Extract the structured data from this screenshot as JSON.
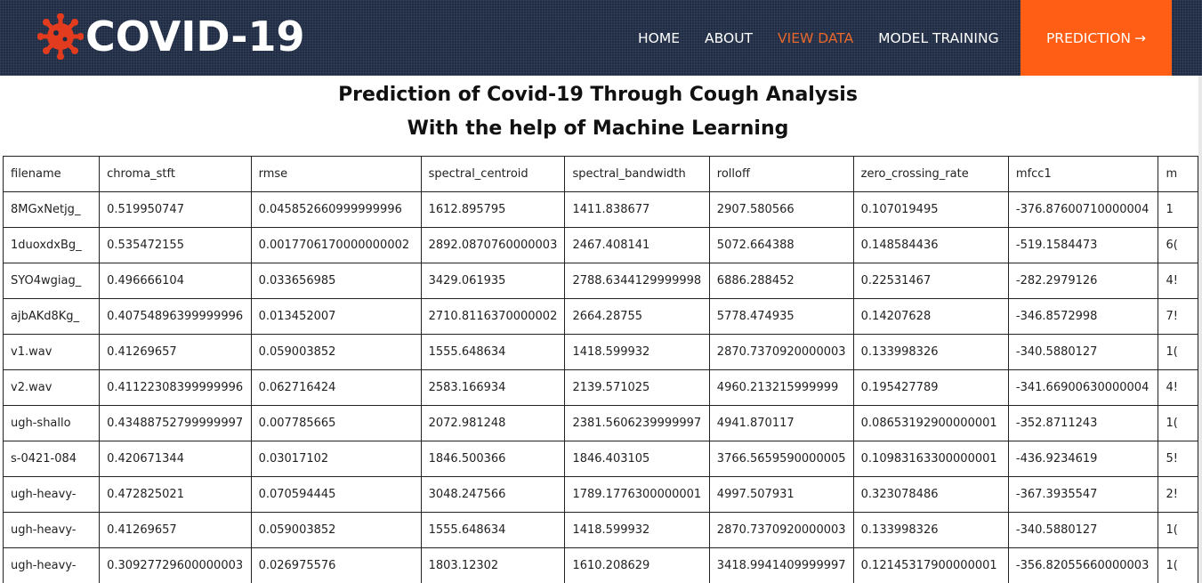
{
  "header": {
    "brand": "COVID-19",
    "brand_icon": "virus-icon",
    "accent_color": "#ff5e14",
    "nav": [
      {
        "label": "HOME",
        "active": false
      },
      {
        "label": "ABOUT",
        "active": false
      },
      {
        "label": "VIEW DATA",
        "active": true
      },
      {
        "label": "MODEL TRAINING",
        "active": false
      }
    ],
    "cta_label": "PREDICTION",
    "cta_arrow": "→"
  },
  "page": {
    "title_line1": "Prediction of Covid-19 Through Cough Analysis",
    "title_line2": "With the help of Machine Learning"
  },
  "table": {
    "columns": [
      "filename",
      "chroma_stft",
      "rmse",
      "spectral_centroid",
      "spectral_bandwidth",
      "rolloff",
      "zero_crossing_rate",
      "mfcc1",
      "m"
    ],
    "rows": [
      [
        "8MGxNetjg_",
        "0.519950747",
        "0.045852660999999996",
        "1612.895795",
        "1411.838677",
        "2907.580566",
        "0.107019495",
        "-376.87600710000004",
        "1"
      ],
      [
        "1duoxdxBg_",
        "0.535472155",
        "0.0017706170000000002",
        "2892.0870760000003",
        "2467.408141",
        "5072.664388",
        "0.148584436",
        "-519.1584473",
        "6("
      ],
      [
        "SYO4wgiag_",
        "0.496666104",
        "0.033656985",
        "3429.061935",
        "2788.6344129999998",
        "6886.288452",
        "0.22531467",
        "-282.2979126",
        "4!"
      ],
      [
        "ajbAKd8Kg_",
        "0.40754896399999996",
        "0.013452007",
        "2710.8116370000002",
        "2664.28755",
        "5778.474935",
        "0.14207628",
        "-346.8572998",
        "7!"
      ],
      [
        "v1.wav",
        "0.41269657",
        "0.059003852",
        "1555.648634",
        "1418.599932",
        "2870.7370920000003",
        "0.133998326",
        "-340.5880127",
        "1("
      ],
      [
        "v2.wav",
        "0.41122308399999996",
        "0.062716424",
        "2583.166934",
        "2139.571025",
        "4960.213215999999",
        "0.195427789",
        "-341.66900630000004",
        "4!"
      ],
      [
        "ugh-shallo",
        "0.43488752799999997",
        "0.007785665",
        "2072.981248",
        "2381.5606239999997",
        "4941.870117",
        "0.08653192900000001",
        "-352.8711243",
        "1("
      ],
      [
        "s-0421-084",
        "0.420671344",
        "0.03017102",
        "1846.500366",
        "1846.403105",
        "3766.5659590000005",
        "0.10983163300000001",
        "-436.9234619",
        "5!"
      ],
      [
        "ugh-heavy-",
        "0.472825021",
        "0.070594445",
        "3048.247566",
        "1789.1776300000001",
        "4997.507931",
        "0.323078486",
        "-367.3935547",
        "2!"
      ],
      [
        "ugh-heavy-",
        "0.41269657",
        "0.059003852",
        "1555.648634",
        "1418.599932",
        "2870.7370920000003",
        "0.133998326",
        "-340.5880127",
        "1("
      ],
      [
        "ugh-heavy-",
        "0.30927729600000003",
        "0.026975576",
        "1803.12302",
        "1610.208629",
        "3418.9941409999997",
        "0.12145317900000001",
        "-356.82055660000003",
        "1("
      ]
    ]
  }
}
